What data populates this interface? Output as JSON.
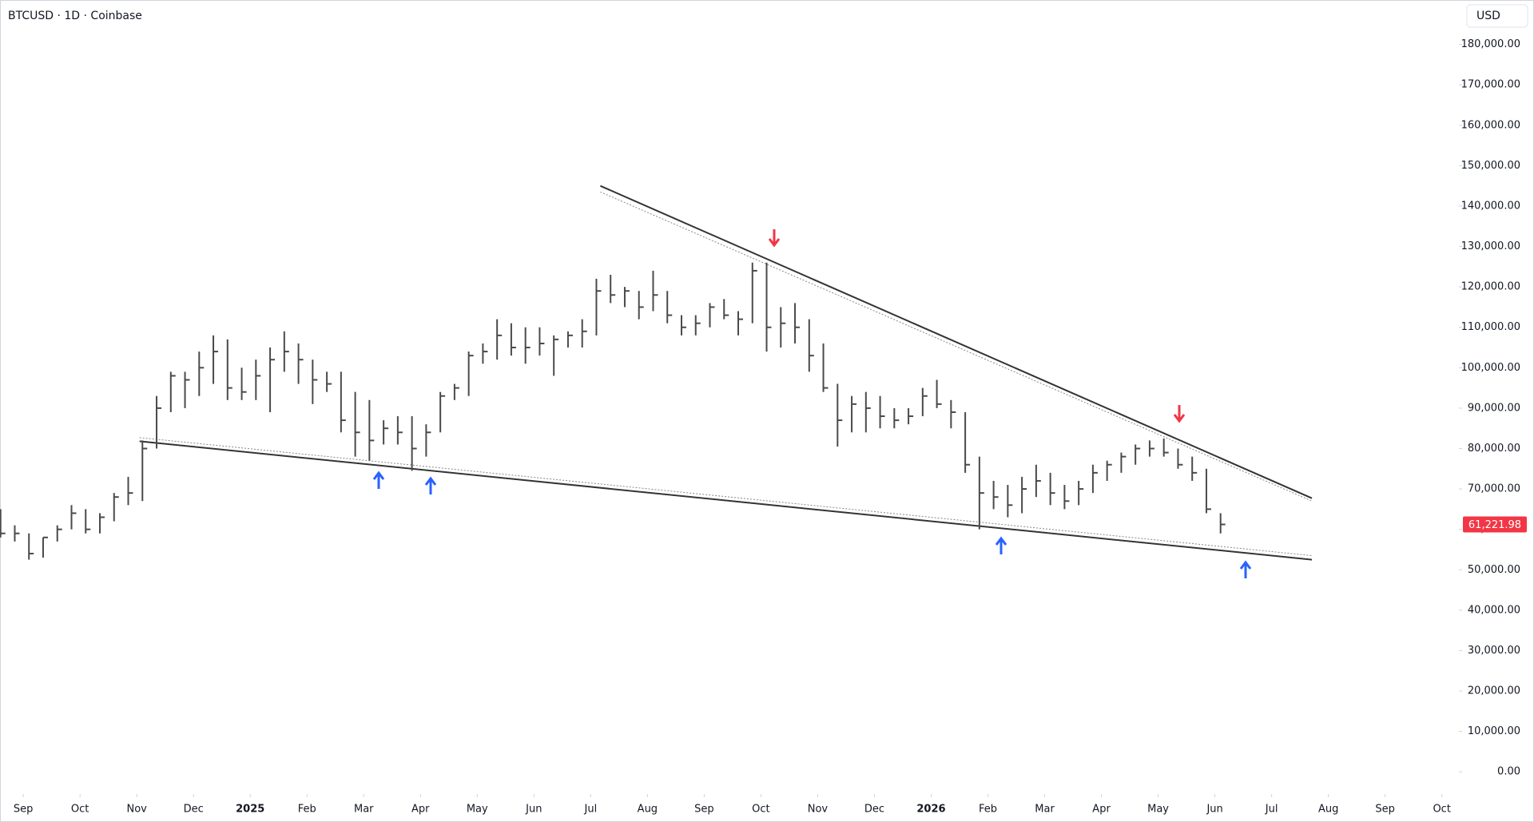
{
  "header": {
    "symbol": "BTCUSD · 1D · Coinbase",
    "currency": "USD"
  },
  "chart_data": {
    "type": "ohlc",
    "color": "#4a4a4a",
    "x": [
      -0.4,
      -0.15,
      0.1,
      0.35,
      0.6,
      0.85,
      1.1,
      1.35,
      1.6,
      1.85,
      2.1,
      2.35,
      2.6,
      2.85,
      3.1,
      3.35,
      3.6,
      3.85,
      4.1,
      4.35,
      4.6,
      4.85,
      5.1,
      5.35,
      5.6,
      5.85,
      6.1,
      6.35,
      6.6,
      6.85,
      7.1,
      7.35,
      7.6,
      7.85,
      8.1,
      8.35,
      8.6,
      8.85,
      9.1,
      9.35,
      9.6,
      9.85,
      10.1,
      10.35,
      10.6,
      10.85,
      11.1,
      11.35,
      11.6,
      11.85,
      12.1,
      12.35,
      12.6,
      12.85,
      13.1,
      13.35,
      13.6,
      13.85,
      14.1,
      14.35,
      14.6,
      14.85,
      15.1,
      15.35,
      15.6,
      15.85,
      16.1,
      16.35,
      16.6,
      16.85,
      17.1,
      17.35,
      17.6,
      17.85,
      18.1,
      18.35,
      18.6,
      18.85,
      19.1,
      19.35,
      19.6,
      19.85,
      20.1,
      20.35,
      20.6,
      20.85,
      21.1
    ],
    "high": [
      65000,
      61000,
      59000,
      58000,
      61000,
      66000,
      65000,
      64000,
      69000,
      73000,
      82000,
      93000,
      99000,
      99000,
      104000,
      108000,
      107000,
      100000,
      102000,
      105000,
      109000,
      106000,
      102000,
      99000,
      99000,
      94000,
      92000,
      87000,
      88000,
      88000,
      86000,
      94000,
      96000,
      104000,
      106000,
      112000,
      111000,
      110000,
      110000,
      108000,
      109000,
      112000,
      122000,
      123000,
      120000,
      119000,
      124000,
      119000,
      113000,
      113000,
      116000,
      117000,
      114000,
      126000,
      126000,
      115000,
      116000,
      112000,
      106000,
      96000,
      93000,
      94000,
      93000,
      90000,
      90000,
      95000,
      97000,
      92000,
      89000,
      78000,
      72000,
      71000,
      73000,
      76000,
      74000,
      71000,
      72000,
      76000,
      77000,
      79000,
      81000,
      82000,
      82500,
      80000,
      78000,
      75000,
      64000
    ],
    "low": [
      58000,
      57000,
      52500,
      53000,
      57000,
      60000,
      59000,
      59000,
      62000,
      66000,
      67000,
      80000,
      89000,
      90000,
      93000,
      96000,
      92000,
      92000,
      92000,
      89000,
      99000,
      96000,
      91000,
      94000,
      84000,
      78000,
      77000,
      81000,
      81000,
      74500,
      78000,
      84000,
      92000,
      93000,
      101000,
      102000,
      103000,
      101000,
      103000,
      98000,
      105000,
      105000,
      108000,
      116000,
      115000,
      112000,
      114000,
      111000,
      108000,
      108000,
      110000,
      112000,
      108000,
      111000,
      104000,
      105000,
      106000,
      99000,
      94000,
      80500,
      84000,
      84000,
      85000,
      85000,
      86000,
      88000,
      90000,
      85000,
      74000,
      60000,
      65000,
      63000,
      64000,
      68000,
      66000,
      65000,
      66000,
      69000,
      72000,
      74000,
      76000,
      78000,
      78000,
      75000,
      72000,
      64000,
      59000
    ],
    "close": [
      59000,
      59000,
      54000,
      58000,
      60000,
      64000,
      60000,
      63000,
      68000,
      69000,
      80000,
      90000,
      98000,
      97000,
      100000,
      104000,
      95000,
      94000,
      98000,
      102000,
      104000,
      102000,
      97000,
      96000,
      87000,
      84000,
      82000,
      85000,
      84000,
      80000,
      84000,
      93000,
      95000,
      103000,
      104000,
      108000,
      105000,
      105000,
      106000,
      107000,
      108000,
      109000,
      119000,
      118000,
      119000,
      115000,
      118000,
      113000,
      110000,
      111000,
      115000,
      113000,
      112000,
      124000,
      110000,
      111000,
      110000,
      103000,
      95000,
      87000,
      91000,
      90000,
      88000,
      87000,
      88000,
      93000,
      91000,
      89000,
      76000,
      69000,
      68000,
      66000,
      70000,
      72000,
      69000,
      67000,
      70000,
      74000,
      76000,
      78000,
      80000,
      80000,
      79000,
      76000,
      74000,
      65000,
      61221.98
    ],
    "xlim": [
      -0.41,
      25.3
    ],
    "xticks": [
      {
        "value": 0,
        "label": "Sep"
      },
      {
        "value": 1,
        "label": "Oct"
      },
      {
        "value": 2,
        "label": "Nov"
      },
      {
        "value": 3,
        "label": "Dec"
      },
      {
        "value": 4,
        "label": "2025"
      },
      {
        "value": 5,
        "label": "Feb"
      },
      {
        "value": 6,
        "label": "Mar"
      },
      {
        "value": 7,
        "label": "Apr"
      },
      {
        "value": 8,
        "label": "May"
      },
      {
        "value": 9,
        "label": "Jun"
      },
      {
        "value": 10,
        "label": "Jul"
      },
      {
        "value": 11,
        "label": "Aug"
      },
      {
        "value": 12,
        "label": "Sep"
      },
      {
        "value": 13,
        "label": "Oct"
      },
      {
        "value": 14,
        "label": "Nov"
      },
      {
        "value": 15,
        "label": "Dec"
      },
      {
        "value": 16,
        "label": "2026"
      },
      {
        "value": 17,
        "label": "Feb"
      },
      {
        "value": 18,
        "label": "Mar"
      },
      {
        "value": 19,
        "label": "Apr"
      },
      {
        "value": 20,
        "label": "May"
      },
      {
        "value": 21,
        "label": "Jun"
      },
      {
        "value": 22,
        "label": "Jul"
      },
      {
        "value": 23,
        "label": "Aug"
      },
      {
        "value": 24,
        "label": "Sep"
      },
      {
        "value": 25,
        "label": "Oct"
      }
    ],
    "ylim": [
      -5500,
      191000
    ],
    "yticks": [
      {
        "value": 0,
        "label": "0.00"
      },
      {
        "value": 10000,
        "label": "10,000.00"
      },
      {
        "value": 20000,
        "label": "20,000.00"
      },
      {
        "value": 30000,
        "label": "30,000.00"
      },
      {
        "value": 40000,
        "label": "40,000.00"
      },
      {
        "value": 50000,
        "label": "50,000.00"
      },
      {
        "value": 60000,
        "label": "60,000.00"
      },
      {
        "value": 70000,
        "label": "70,000.00"
      },
      {
        "value": 80000,
        "label": "80,000.00"
      },
      {
        "value": 90000,
        "label": "90,000.00"
      },
      {
        "value": 100000,
        "label": "100,000.00"
      },
      {
        "value": 110000,
        "label": "110,000.00"
      },
      {
        "value": 120000,
        "label": "120,000.00"
      },
      {
        "value": 130000,
        "label": "130,000.00"
      },
      {
        "value": 140000,
        "label": "140,000.00"
      },
      {
        "value": 150000,
        "label": "150,000.00"
      },
      {
        "value": 160000,
        "label": "160,000.00"
      },
      {
        "value": 170000,
        "label": "170,000.00"
      },
      {
        "value": 180000,
        "label": "180,000.00"
      }
    ],
    "trendlines": [
      {
        "x": [
          10.17,
          22.71
        ],
        "y": [
          145000,
          67700
        ],
        "style": "solid"
      },
      {
        "x": [
          10.17,
          22.71
        ],
        "y": [
          143500,
          67000
        ],
        "style": "dotted"
      },
      {
        "x": [
          2.05,
          22.71
        ],
        "y": [
          81800,
          52500
        ],
        "style": "solid"
      },
      {
        "x": [
          2.05,
          22.71
        ],
        "y": [
          82700,
          53500
        ],
        "style": "dotted"
      }
    ],
    "price_tag": {
      "value": 61221.98,
      "label": "61,221.98",
      "color": "#f23645"
    }
  }
}
